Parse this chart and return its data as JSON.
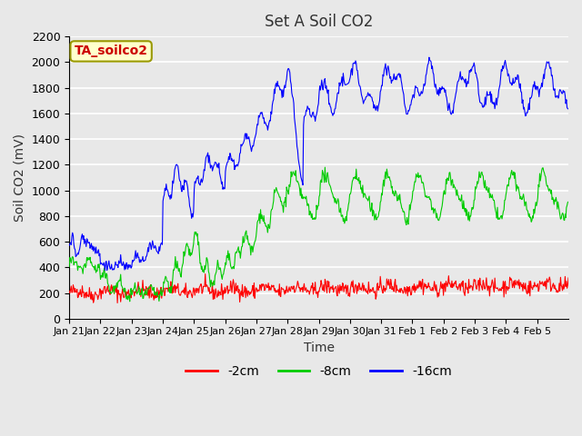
{
  "title": "Set A Soil CO2",
  "ylabel": "Soil CO2 (mV)",
  "xlabel": "Time",
  "annotation": "TA_soilco2",
  "legend_labels": [
    "-2cm",
    "-8cm",
    "-16cm"
  ],
  "legend_colors": [
    "#ff0000",
    "#00cc00",
    "#0000ff"
  ],
  "ylim": [
    0,
    2200
  ],
  "background_color": "#e8e8e8",
  "grid_color": "#ffffff",
  "xtick_labels": [
    "Jan 21",
    "Jan 22",
    "Jan 23",
    "Jan 24",
    "Jan 25",
    "Jan 26",
    "Jan 27",
    "Jan 28",
    "Jan 29",
    "Jan 30",
    "Jan 31",
    "Feb 1",
    "Feb 2",
    "Feb 3",
    "Feb 4",
    "Feb 5"
  ],
  "ytick_values": [
    0,
    200,
    400,
    600,
    800,
    1000,
    1200,
    1400,
    1600,
    1800,
    2000,
    2200
  ],
  "annotation_box_color": "#ffffcc",
  "annotation_text_color": "#cc0000",
  "annotation_border_color": "#999900",
  "n_days": 16
}
